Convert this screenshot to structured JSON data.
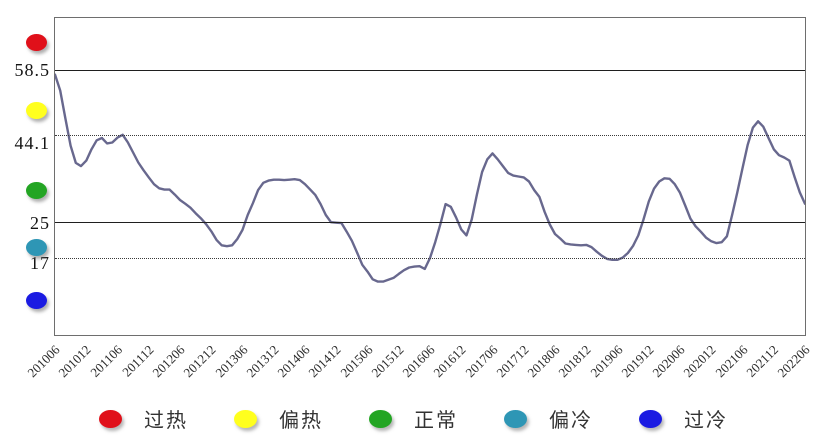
{
  "chart_data": {
    "type": "line",
    "title": "",
    "x_start": "201006",
    "x_end": "202206",
    "months_per_tick": 6,
    "x_tick_labels": [
      "201006",
      "201012",
      "201106",
      "201112",
      "201206",
      "201212",
      "201306",
      "201312",
      "201406",
      "201412",
      "201506",
      "201512",
      "201606",
      "201612",
      "201706",
      "201712",
      "201806",
      "201812",
      "201906",
      "201912",
      "202006",
      "202012",
      "202106",
      "202112",
      "202206"
    ],
    "ylim": [
      0,
      70
    ],
    "grid": true,
    "thresholds": [
      {
        "label": "58.5",
        "value": 58.5,
        "style": "solid"
      },
      {
        "label": "44.1",
        "value": 44.1,
        "style": "dotted"
      },
      {
        "label": "25",
        "value": 25,
        "style": "solid"
      },
      {
        "label": "17",
        "value": 17,
        "style": "dotted"
      }
    ],
    "zones": [
      {
        "label": "过热",
        "color": "#e0101a",
        "range": [
          58.5,
          70
        ]
      },
      {
        "label": "偏热",
        "color": "#ffff1e",
        "range": [
          44.1,
          58.5
        ]
      },
      {
        "label": "正常",
        "color": "#23a523",
        "range": [
          25,
          44.1
        ]
      },
      {
        "label": "偏冷",
        "color": "#2e96b5",
        "range": [
          17,
          25
        ]
      },
      {
        "label": "过冷",
        "color": "#1b1be2",
        "range": [
          0,
          17
        ]
      }
    ],
    "legend_position": "bottom",
    "series": [
      {
        "color": "#68688e",
        "values": [
          57.5,
          54,
          47.8,
          41.8,
          38,
          37.3,
          38.5,
          41,
          43,
          43.5,
          42.3,
          42.5,
          43.6,
          44.2,
          42.5,
          40.3,
          38.1,
          36.4,
          34.8,
          33.3,
          32.4,
          32.1,
          32.1,
          31,
          29.8,
          29,
          28.1,
          26.9,
          25.8,
          24.5,
          22.9,
          21,
          19.8,
          19.6,
          19.8,
          21.2,
          23.2,
          26.5,
          29.1,
          32,
          33.6,
          34.1,
          34.3,
          34.3,
          34.2,
          34.3,
          34.4,
          34.2,
          33.3,
          32.1,
          30.9,
          28.9,
          26.5,
          24.9,
          24.8,
          24.7,
          22.8,
          20.8,
          18.2,
          15.5,
          14,
          12.3,
          11.8,
          11.8,
          12.2,
          12.6,
          13.5,
          14.3,
          14.9,
          15.1,
          15.2,
          14.6,
          17,
          20.5,
          24.5,
          28.9,
          28.3,
          26,
          23.3,
          22,
          25.5,
          31,
          36,
          38.8,
          40.1,
          38.8,
          37.3,
          35.8,
          35.2,
          35,
          34.8,
          33.9,
          32,
          30.5,
          27.2,
          24.4,
          22.3,
          21.3,
          20.2,
          20,
          19.9,
          19.8,
          19.9,
          19.4,
          18.4,
          17.5,
          16.8,
          16.6,
          16.6,
          17.1,
          18.1,
          19.7,
          22,
          25.5,
          29.5,
          32.3,
          33.9,
          34.6,
          34.5,
          33.3,
          31.4,
          28.6,
          25.7,
          24,
          22.8,
          21.5,
          20.7,
          20.3,
          20.5,
          21.8,
          26.5,
          31.5,
          36.8,
          42,
          45.8,
          47.2,
          46,
          43.5,
          41,
          39.7,
          39.2,
          38.5,
          34.9,
          31.5,
          29
        ]
      }
    ]
  }
}
